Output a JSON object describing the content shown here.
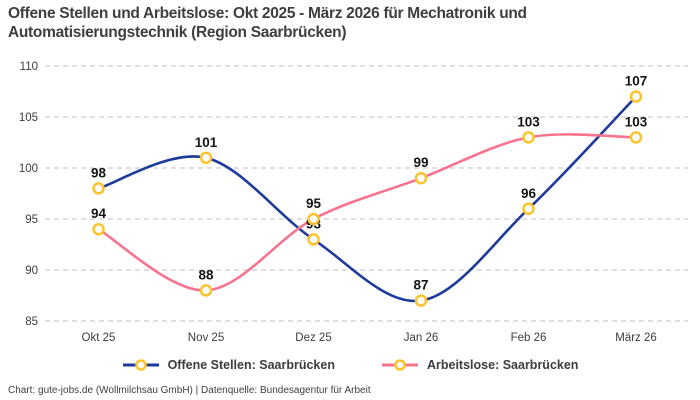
{
  "title": {
    "line1": "Offene Stellen und Arbeitslose: Okt 2025 - März 2026 für Mechatronik und",
    "line2": "Automatisierungstechnik (Region Saarbrücken)"
  },
  "footer": {
    "text": "Chart: gute-jobs.de (Wollmilchsau GmbH) | Datenquelle: Bundesagentur für Arbeit"
  },
  "legend": {
    "items": [
      {
        "label": "Offene Stellen: Saarbrücken",
        "color": "#1e3a9c"
      },
      {
        "label": "Arbeitslose: Saarbrücken",
        "color": "#f9738f"
      }
    ]
  },
  "colors": {
    "grid": "#cccccc",
    "tick_text": "#3d3d3d",
    "data_label": "#141414",
    "marker_stroke": "#fcc32d",
    "marker_fill": "#ffffff"
  },
  "chart_data": {
    "type": "line",
    "title": "Offene Stellen und Arbeitslose: Okt 2025 - März 2026 für Mechatronik und Automatisierungstechnik (Region Saarbrücken)",
    "categories": [
      "Okt 25",
      "Nov 25",
      "Dez 25",
      "Jan 26",
      "Feb 26",
      "März 26"
    ],
    "series": [
      {
        "name": "Offene Stellen: Saarbrücken",
        "color": "#1e3a9c",
        "values": [
          98,
          101,
          93,
          87,
          96,
          107
        ]
      },
      {
        "name": "Arbeitslose: Saarbrücken",
        "color": "#f9738f",
        "values": [
          94,
          88,
          95,
          99,
          103,
          103
        ]
      }
    ],
    "ylim": [
      85,
      110
    ],
    "yticks": [
      85,
      90,
      95,
      100,
      105,
      110
    ],
    "xlabel": "",
    "ylabel": "",
    "grid": "horizontal-dashed",
    "line_style": "spline",
    "marker": {
      "shape": "circle",
      "fill": "#ffffff",
      "stroke": "#fcc32d"
    },
    "data_labels": "above-points",
    "legend_position": "bottom"
  }
}
